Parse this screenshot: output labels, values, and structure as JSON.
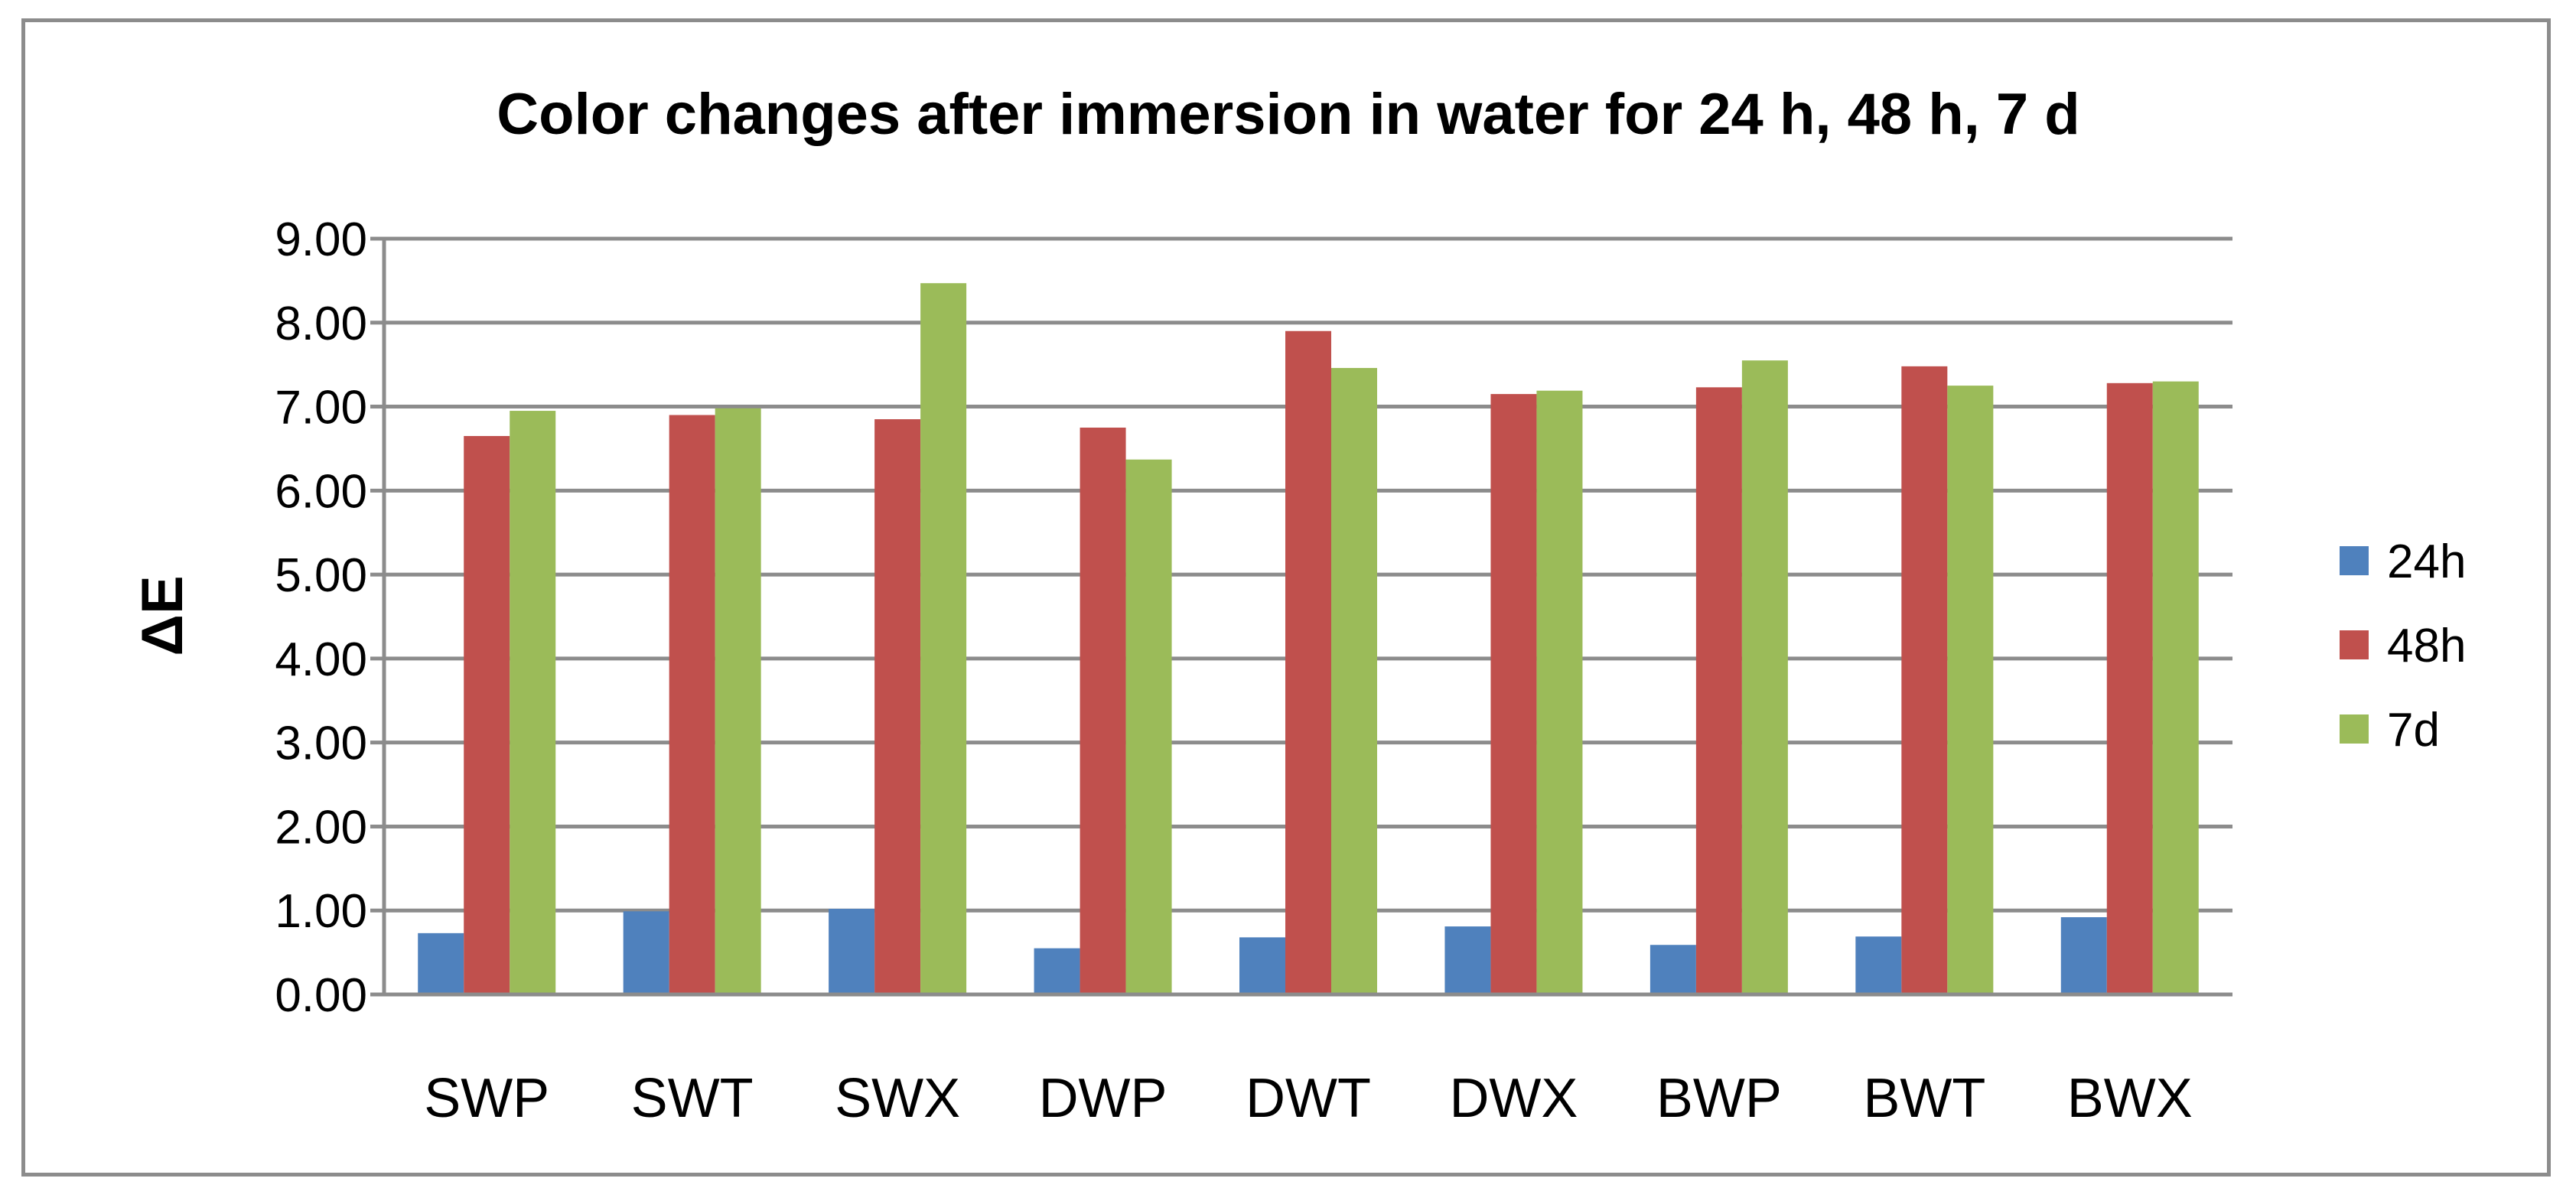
{
  "chart_data": {
    "type": "bar",
    "title": "Color changes after immersion in water for 24 h, 48 h, 7 d",
    "xlabel": "",
    "ylabel": "ΔE",
    "ylim": [
      0,
      9
    ],
    "yticks": [
      "0.00",
      "1.00",
      "2.00",
      "3.00",
      "4.00",
      "5.00",
      "6.00",
      "7.00",
      "8.00",
      "9.00"
    ],
    "grid": true,
    "legend_position": "right",
    "categories": [
      "SWP",
      "SWT",
      "SWX",
      "DWP",
      "DWT",
      "DWX",
      "BWP",
      "BWT",
      "BWX"
    ],
    "series": [
      {
        "name": "24h",
        "color": "#4f81bd",
        "values": [
          0.73,
          0.99,
          1.02,
          0.55,
          0.68,
          0.81,
          0.59,
          0.69,
          0.92
        ]
      },
      {
        "name": "48h",
        "color": "#c0504d",
        "values": [
          6.65,
          6.9,
          6.85,
          6.75,
          7.9,
          7.15,
          7.23,
          7.48,
          7.28
        ]
      },
      {
        "name": "7d",
        "color": "#9bbb59",
        "values": [
          6.95,
          6.98,
          8.47,
          6.37,
          7.46,
          7.19,
          7.55,
          7.25,
          7.3
        ]
      }
    ]
  }
}
